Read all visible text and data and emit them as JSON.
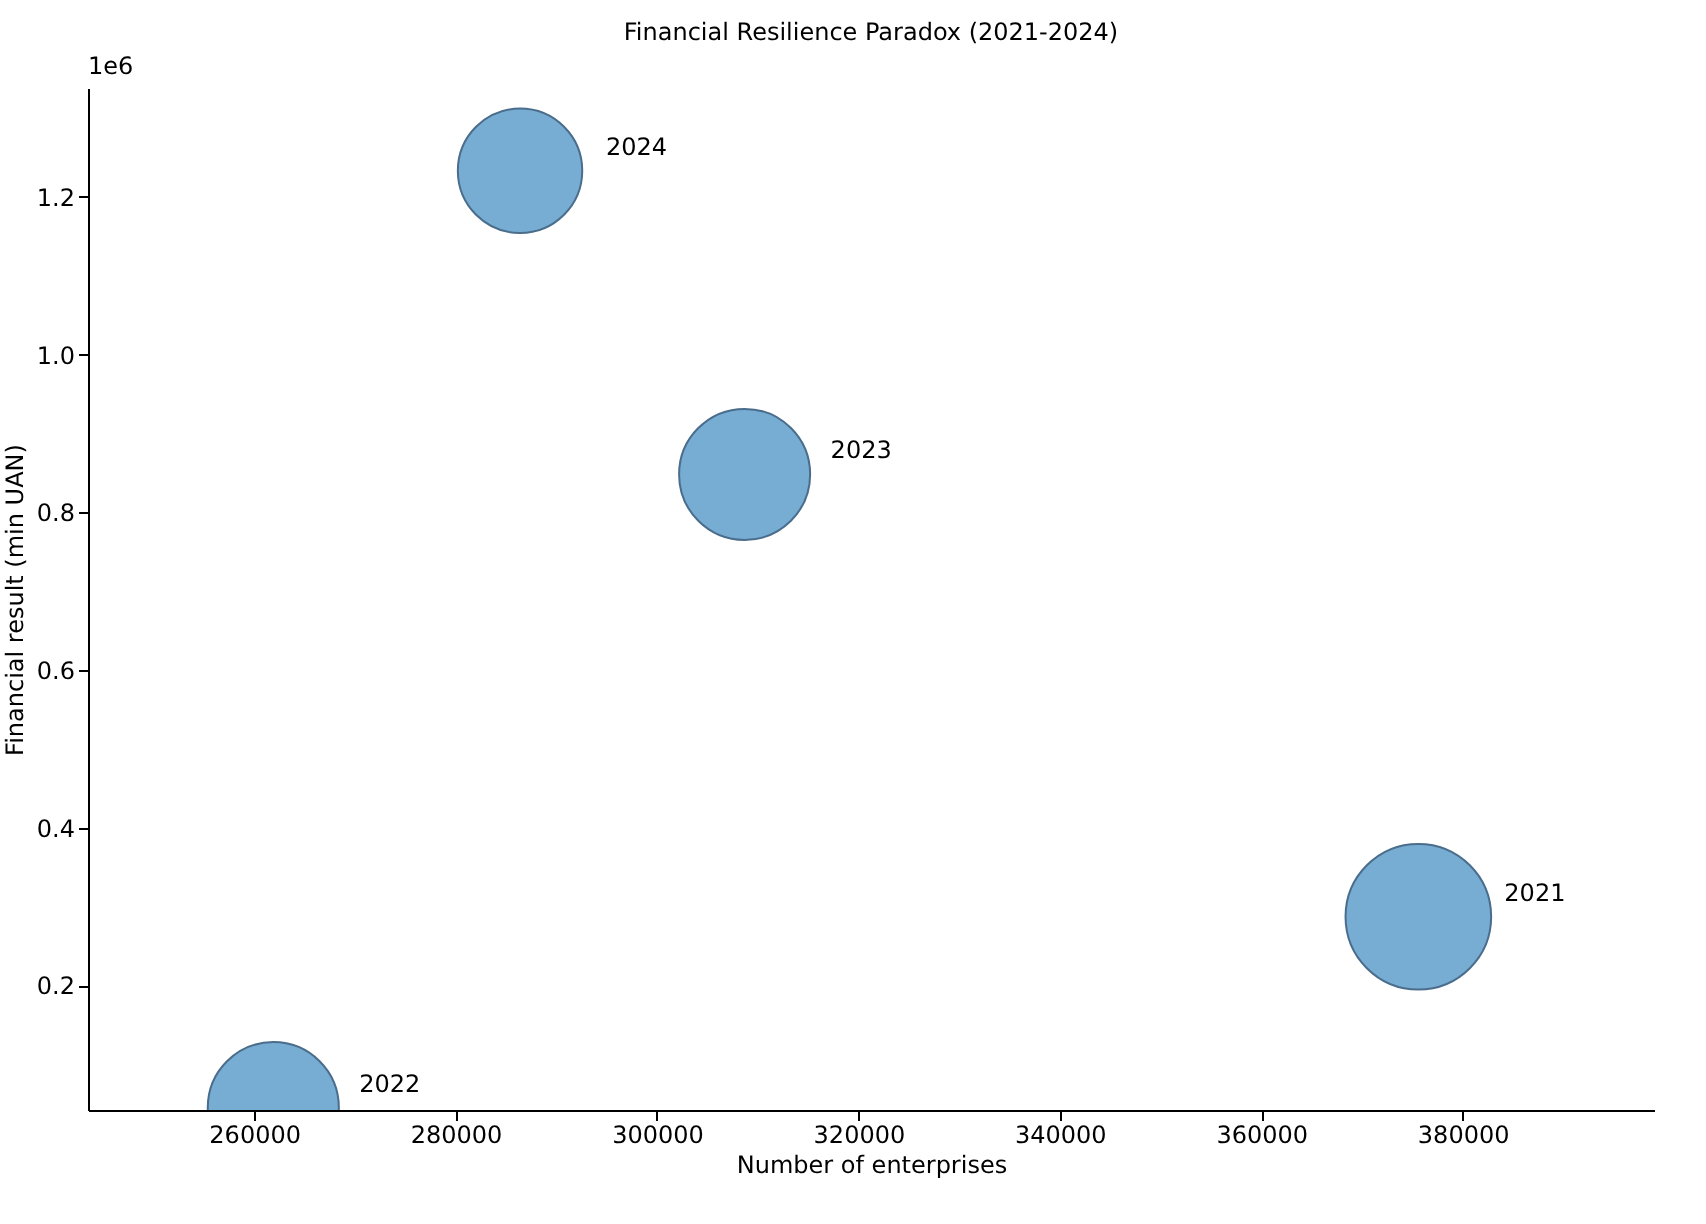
{
  "chart_data": {
    "type": "bubble",
    "title": "Financial Resilience Paradox (2021-2024)",
    "xlabel": "Number of enterprises",
    "ylabel": "Financial result (min UAN)",
    "series": [
      {
        "name": "2021",
        "color": "#77acd3",
        "x": [
          375600
        ],
        "values": [
          0.287
        ],
        "sizes": [
          1
        ]
      },
      {
        "name": "2022",
        "color": "#77acd3",
        "x": [
          261900
        ],
        "values": [
          0.045
        ],
        "sizes": [
          0.81
        ]
      },
      {
        "name": "2023",
        "color": "#77acd3",
        "x": [
          308700
        ],
        "values": [
          0.848
        ],
        "sizes": [
          0.81
        ]
      },
      {
        "name": "2024",
        "color": "#77acd3",
        "x": [
          286400
        ],
        "values": [
          1.233
        ],
        "sizes": [
          0.73
        ]
      }
    ],
    "xlim": [
      243500,
      399000
    ],
    "xticks": [
      260000,
      280000,
      300000,
      320000,
      340000,
      360000,
      380000
    ],
    "ylim": [
      0.042,
      1.338
    ],
    "yticks": [
      {
        "value": 0.2,
        "label": "0.2"
      },
      {
        "value": 0.4,
        "label": "0.4"
      },
      {
        "value": 0.6,
        "label": "0.6"
      },
      {
        "value": 0.8,
        "label": "0.8"
      },
      {
        "value": 1.0,
        "label": "1.0"
      },
      {
        "value": 1.2,
        "label": "1.2"
      }
    ],
    "annotations": [
      "1e6"
    ],
    "grid": false
  }
}
